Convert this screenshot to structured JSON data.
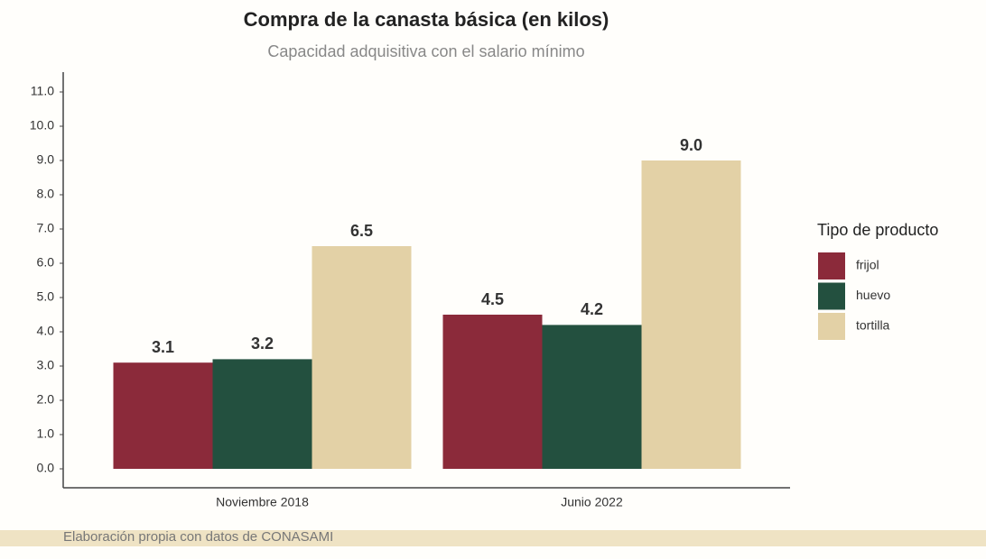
{
  "chart_data": {
    "type": "bar",
    "title": "Compra de la canasta básica (en kilos)",
    "subtitle": "Capacidad adquisitiva con el salario mínimo",
    "source": "Elaboración propia con datos de CONASAMI",
    "legend_title": "Tipo de producto",
    "legend": "right",
    "grid": false,
    "categories": [
      "Noviembre 2018",
      "Junio 2022"
    ],
    "series": [
      {
        "name": "frijol",
        "color": "#8b2a3a",
        "values": [
          3.1,
          4.5
        ],
        "value_labels": [
          "3.1",
          "4.5"
        ]
      },
      {
        "name": "huevo",
        "color": "#23503f",
        "values": [
          3.2,
          4.2
        ],
        "value_labels": [
          "3.2",
          "4.2"
        ]
      },
      {
        "name": "tortilla",
        "color": "#e3d1a6",
        "values": [
          6.5,
          9
        ],
        "value_labels": [
          "6.5",
          "9.0"
        ]
      }
    ],
    "ylim": [
      -0.5,
      11.5
    ],
    "yticks": [
      {
        "value": 0,
        "label": "0.0"
      },
      {
        "value": 1,
        "label": "1.0"
      },
      {
        "value": 2,
        "label": "2.0"
      },
      {
        "value": 3,
        "label": "3.0"
      },
      {
        "value": 4,
        "label": "4.0"
      },
      {
        "value": 5,
        "label": "5.0"
      },
      {
        "value": 6,
        "label": "6.0"
      },
      {
        "value": 7,
        "label": "7.0"
      },
      {
        "value": 8,
        "label": "8.0"
      },
      {
        "value": 9,
        "label": "9.0"
      },
      {
        "value": 10,
        "label": "10.0"
      },
      {
        "value": 11,
        "label": "11.0"
      }
    ]
  }
}
